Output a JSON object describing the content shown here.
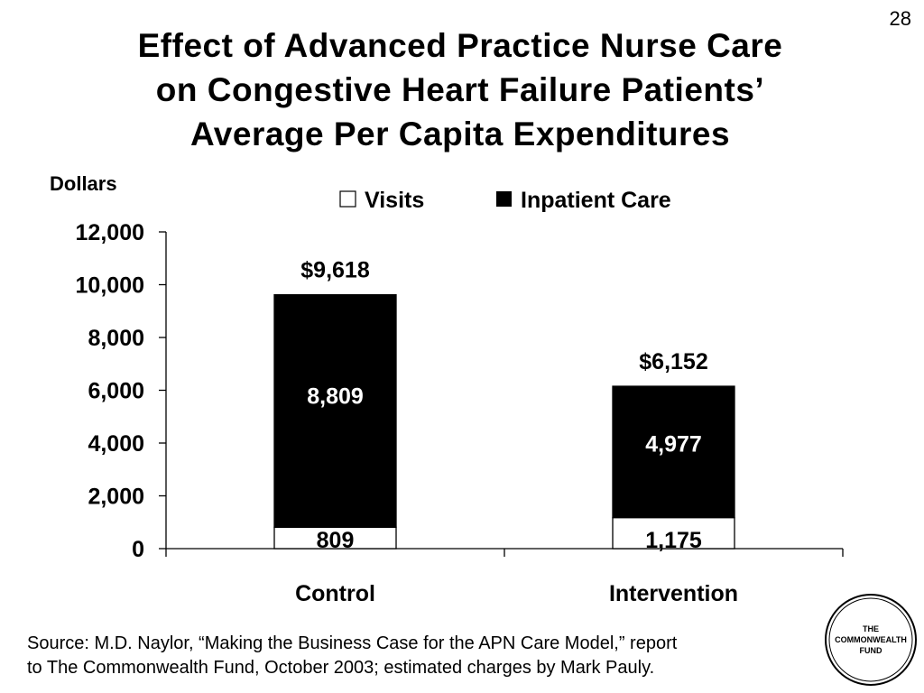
{
  "slide_number": "28",
  "title_lines": [
    "Effect of Advanced Practice Nurse Care",
    "on Congestive Heart Failure Patients’",
    "Average Per Capita Expenditures"
  ],
  "source_lines": [
    "Source:  M.D. Naylor, “Making the Business Case for the APN Care Model,” report",
    "to The Commonwealth Fund, October 2003; estimated charges by Mark Pauly."
  ],
  "logo": {
    "lines": [
      "THE",
      "COMMONWEALTH",
      "FUND"
    ]
  },
  "chart_data": {
    "type": "bar",
    "stacked": true,
    "ylabel": "Dollars",
    "ylim": [
      0,
      12000
    ],
    "yticks": [
      0,
      2000,
      4000,
      6000,
      8000,
      10000,
      12000
    ],
    "ytick_labels": [
      "0",
      "2,000",
      "4,000",
      "6,000",
      "8,000",
      "10,000",
      "12,000"
    ],
    "categories": [
      "Control",
      "Intervention"
    ],
    "totals": [
      9618,
      6152
    ],
    "total_labels": [
      "$9,618",
      "$6,152"
    ],
    "legend_placement": "top",
    "series": [
      {
        "name": "Visits",
        "values": [
          809,
          1175
        ],
        "labels": [
          "809",
          "1,175"
        ],
        "color": "#ffffff"
      },
      {
        "name": "Inpatient Care",
        "values": [
          8809,
          4977
        ],
        "labels": [
          "8,809",
          "4,977"
        ],
        "color": "#000000"
      }
    ]
  }
}
